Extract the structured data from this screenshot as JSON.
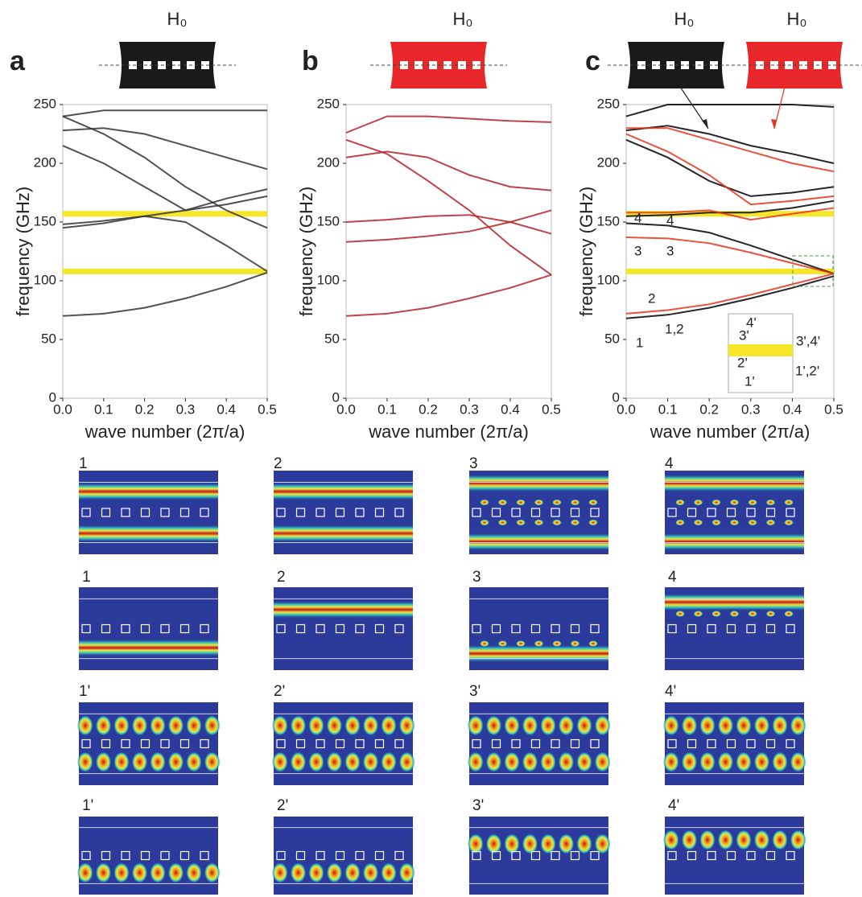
{
  "chart_data": [
    {
      "type": "line",
      "panel": "a",
      "headers": [
        "H₀"
      ],
      "xlabel": "wave number (2π/a)",
      "ylabel": "frequency (GHz)",
      "x": [
        0,
        0.1,
        0.2,
        0.3,
        0.4,
        0.5
      ],
      "series": [
        {
          "color": "#333333",
          "values": [
            70,
            72,
            77,
            85,
            95,
            107
          ]
        },
        {
          "color": "#333333",
          "values": [
            145,
            149,
            155,
            150,
            130,
            108
          ]
        },
        {
          "color": "#333333",
          "values": [
            148,
            151,
            155,
            160,
            170,
            178
          ]
        },
        {
          "color": "#333333",
          "values": [
            215,
            200,
            180,
            160,
            165,
            172
          ]
        },
        {
          "color": "#333333",
          "values": [
            240,
            225,
            205,
            180,
            160,
            145
          ]
        },
        {
          "color": "#333333",
          "values": [
            228,
            230,
            225,
            215,
            205,
            195
          ]
        },
        {
          "color": "#333333",
          "values": [
            240,
            245,
            245,
            245,
            245,
            245
          ]
        }
      ],
      "hlines": [
        157,
        108
      ],
      "hline_color": "#f5e62a",
      "xlim": [
        0,
        0.5
      ],
      "ylim": [
        0,
        250
      ],
      "xticks": [
        {
          "value": 0,
          "label": "0.0"
        },
        0.1,
        0.2,
        0.3,
        0.4,
        0.5
      ],
      "yticks": [
        0,
        50,
        100,
        150,
        200,
        250
      ],
      "annotations": []
    },
    {
      "type": "line",
      "panel": "b",
      "headers": [
        "H₀"
      ],
      "xlabel": "wave number (2π/a)",
      "ylabel": "frequency (GHz)",
      "x": [
        0,
        0.1,
        0.2,
        0.3,
        0.4,
        0.5
      ],
      "series": [
        {
          "color": "#b5222a",
          "values": [
            70,
            72,
            77,
            85,
            94,
            105
          ]
        },
        {
          "color": "#b5222a",
          "values": [
            133,
            135,
            138,
            142,
            150,
            160
          ]
        },
        {
          "color": "#b5222a",
          "values": [
            150,
            152,
            155,
            156,
            150,
            140
          ]
        },
        {
          "color": "#b5222a",
          "values": [
            220,
            208,
            185,
            160,
            130,
            105
          ]
        },
        {
          "color": "#b5222a",
          "values": [
            205,
            210,
            205,
            190,
            180,
            177
          ]
        },
        {
          "color": "#b5222a",
          "values": [
            226,
            240,
            240,
            238,
            236,
            235
          ]
        }
      ],
      "hlines": [],
      "hline_color": "#f5e62a",
      "xlim": [
        0,
        0.5
      ],
      "ylim": [
        0,
        250
      ],
      "xticks": [
        {
          "value": 0,
          "label": "0.0"
        },
        0.1,
        0.2,
        0.3,
        0.4,
        0.5
      ],
      "yticks": [
        0,
        50,
        100,
        150,
        200,
        250
      ],
      "annotations": []
    },
    {
      "type": "line",
      "panel": "c",
      "headers": [
        "H₀",
        "H₀"
      ],
      "xlabel": "wave number (2π/a)",
      "ylabel": "frequency (GHz)",
      "x": [
        0,
        0.1,
        0.2,
        0.3,
        0.4,
        0.5
      ],
      "series": [
        {
          "color": "#000000",
          "values": [
            68,
            71,
            77,
            85,
            94,
            104
          ]
        },
        {
          "color": "#e8321e",
          "values": [
            72,
            75,
            80,
            88,
            97,
            106
          ]
        },
        {
          "color": "#000000",
          "values": [
            149,
            147,
            141,
            130,
            118,
            106
          ]
        },
        {
          "color": "#e8321e",
          "values": [
            137,
            136,
            132,
            124,
            115,
            106
          ]
        },
        {
          "color": "#000000",
          "values": [
            155,
            156,
            158,
            158,
            162,
            168
          ]
        },
        {
          "color": "#e8321e",
          "values": [
            158,
            158,
            160,
            152,
            157,
            162
          ]
        },
        {
          "color": "#000000",
          "values": [
            220,
            205,
            185,
            172,
            175,
            180
          ]
        },
        {
          "color": "#e8321e",
          "values": [
            225,
            210,
            190,
            165,
            168,
            172
          ]
        },
        {
          "color": "#000000",
          "values": [
            228,
            232,
            225,
            215,
            208,
            200
          ]
        },
        {
          "color": "#e8321e",
          "values": [
            230,
            230,
            220,
            210,
            200,
            193
          ]
        },
        {
          "color": "#000000",
          "values": [
            240,
            250,
            250,
            250,
            250,
            248
          ]
        }
      ],
      "hlines": [
        157,
        108
      ],
      "hline_color": "#f5e62a",
      "xlim": [
        0,
        0.5
      ],
      "ylim": [
        0,
        250
      ],
      "xticks": [
        {
          "value": 0,
          "label": "0.0"
        },
        0.1,
        0.2,
        0.3,
        0.4,
        0.5
      ],
      "yticks": [
        0,
        50,
        100,
        150,
        200,
        250
      ],
      "annotations": [
        {
          "text": "4",
          "color": "#e8321e"
        },
        {
          "text": "4",
          "color": "#222222"
        },
        {
          "text": "3",
          "color": "#e8321e"
        },
        {
          "text": "3",
          "color": "#222222"
        },
        {
          "text": "2",
          "color": "#e8321e"
        },
        {
          "text": "1,2",
          "color": "#222222"
        },
        {
          "text": "1",
          "color": "#e8321e"
        },
        {
          "text": "4'",
          "color": "#e8321e"
        },
        {
          "text": "3'",
          "color": "#e8321e"
        },
        {
          "text": "3',4'",
          "color": "#222222"
        },
        {
          "text": "2'",
          "color": "#e8321e"
        },
        {
          "text": "1',2'",
          "color": "#222222"
        },
        {
          "text": "1'",
          "color": "#e8321e"
        }
      ]
    }
  ],
  "mode_maps": [
    {
      "color": "#222222",
      "labels": [
        "1",
        "2",
        "3",
        "4"
      ]
    },
    {
      "color": "#e8321e",
      "labels": [
        "1",
        "2",
        "3",
        "4"
      ]
    },
    {
      "color": "#222222",
      "labels": [
        "1'",
        "2'",
        "3'",
        "4'"
      ]
    },
    {
      "color": "#e8321e",
      "labels": [
        "1'",
        "2'",
        "3'",
        "4'"
      ]
    }
  ]
}
